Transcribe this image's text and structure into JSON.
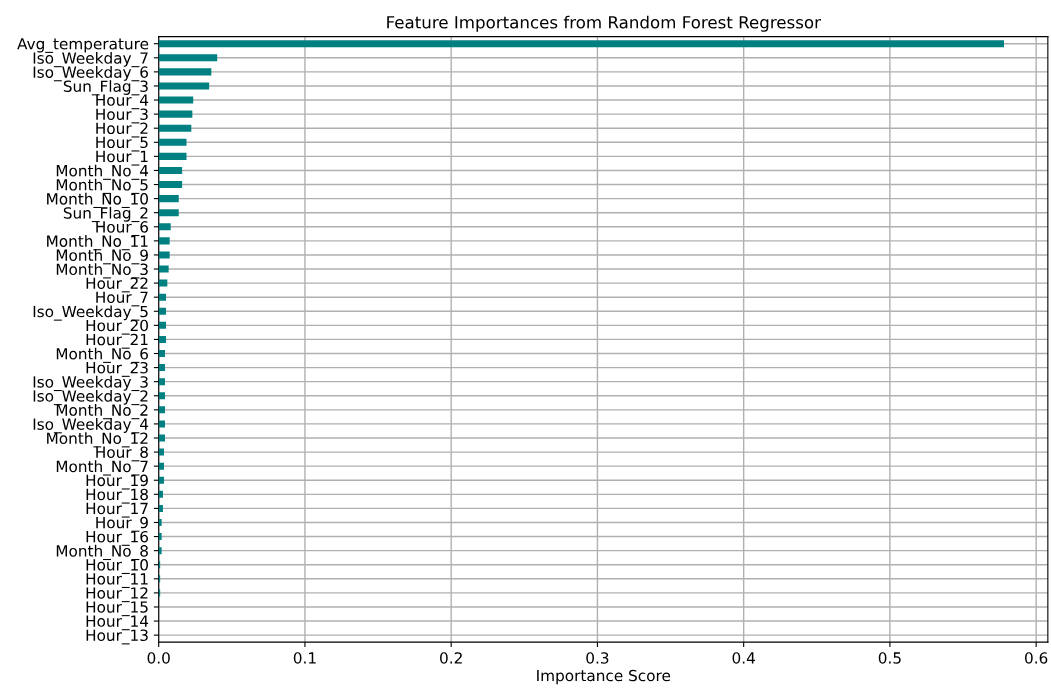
{
  "chart_data": {
    "type": "bar",
    "orientation": "horizontal",
    "title": "Feature Importances from Random Forest Regressor",
    "xlabel": "Importance Score",
    "categories": [
      "Avg_temperature",
      "Iso_Weekday_7",
      "Iso_Weekday_6",
      "Sun_Flag_3",
      "Hour_4",
      "Hour_3",
      "Hour_2",
      "Hour_5",
      "Hour_1",
      "Month_No_4",
      "Month_No_5",
      "Month_No_10",
      "Sun_Flag_2",
      "Hour_6",
      "Month_No_11",
      "Month_No_9",
      "Month_No_3",
      "Hour_22",
      "Hour_7",
      "Iso_Weekday_5",
      "Hour_20",
      "Hour_21",
      "Month_No_6",
      "Hour_23",
      "Iso_Weekday_3",
      "Iso_Weekday_2",
      "Month_No_2",
      "Iso_Weekday_4",
      "Month_No_12",
      "Hour_8",
      "Month_No_7",
      "Hour_19",
      "Hour_18",
      "Hour_17",
      "Hour_9",
      "Hour_16",
      "Month_No_8",
      "Hour_10",
      "Hour_11",
      "Hour_12",
      "Hour_15",
      "Hour_14",
      "Hour_13"
    ],
    "values": [
      0.578,
      0.04,
      0.036,
      0.0345,
      0.0236,
      0.023,
      0.0223,
      0.019,
      0.019,
      0.016,
      0.016,
      0.0137,
      0.0137,
      0.0082,
      0.0075,
      0.0075,
      0.0068,
      0.0059,
      0.005,
      0.005,
      0.005,
      0.005,
      0.0043,
      0.0043,
      0.0043,
      0.0043,
      0.0043,
      0.0043,
      0.0043,
      0.0036,
      0.0036,
      0.0036,
      0.0029,
      0.0029,
      0.002,
      0.002,
      0.002,
      0.001,
      0.001,
      0.001,
      null,
      null,
      null
    ],
    "color": "#008080",
    "xlim": [
      0,
      0.608
    ],
    "xticks": [
      {
        "value": 0,
        "label": "0.0"
      },
      0.1,
      0.2,
      0.3,
      0.4,
      0.5,
      0.6
    ],
    "grid": true
  }
}
